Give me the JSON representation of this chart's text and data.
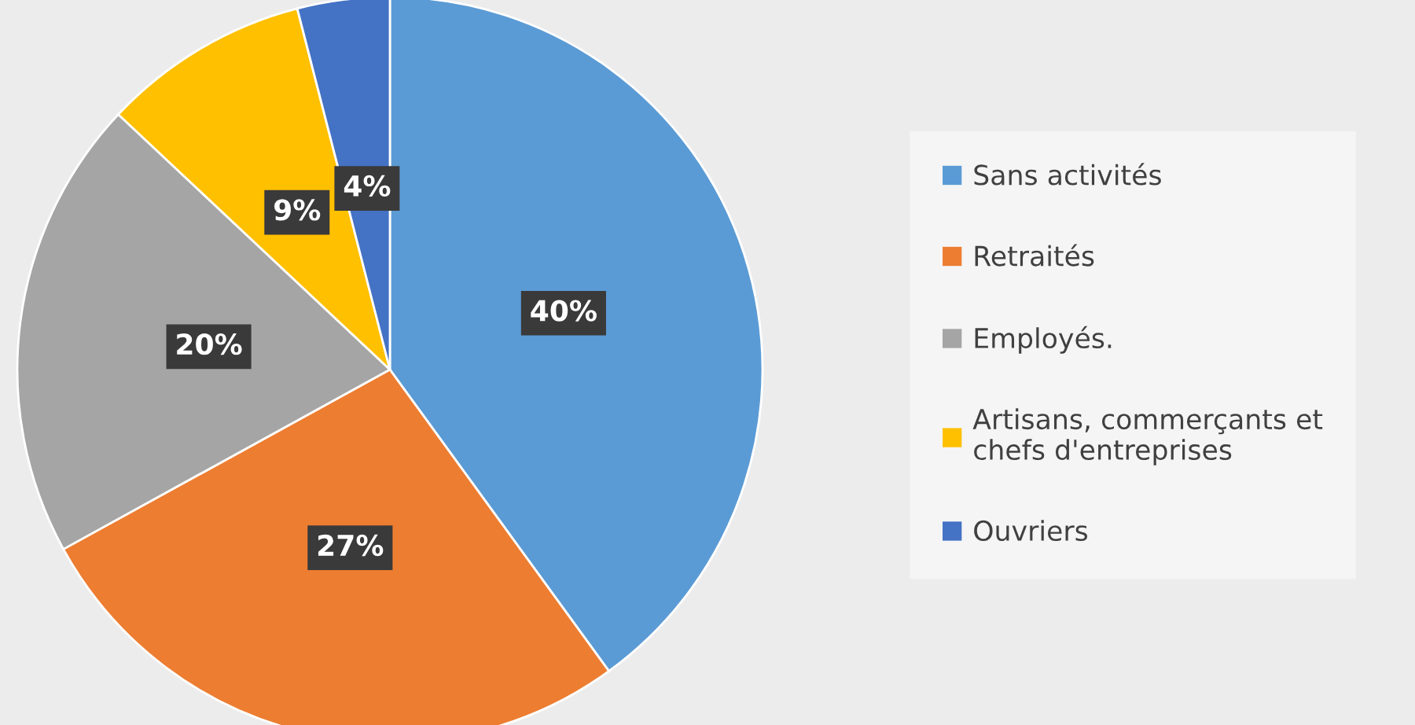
{
  "chart_data": {
    "type": "pie",
    "categories": [
      "Sans activités",
      "Retraités",
      "Employés.",
      "Artisans, commerçants et chefs d'entreprises",
      "Ouvriers"
    ],
    "values": [
      40,
      27,
      20,
      9,
      4
    ],
    "colors": [
      "#5b9bd5",
      "#ed7d31",
      "#a5a5a5",
      "#ffc000",
      "#4472c4"
    ],
    "value_labels": [
      "40%",
      "27%",
      "20%",
      "9%",
      "4%"
    ],
    "legend": "right"
  }
}
